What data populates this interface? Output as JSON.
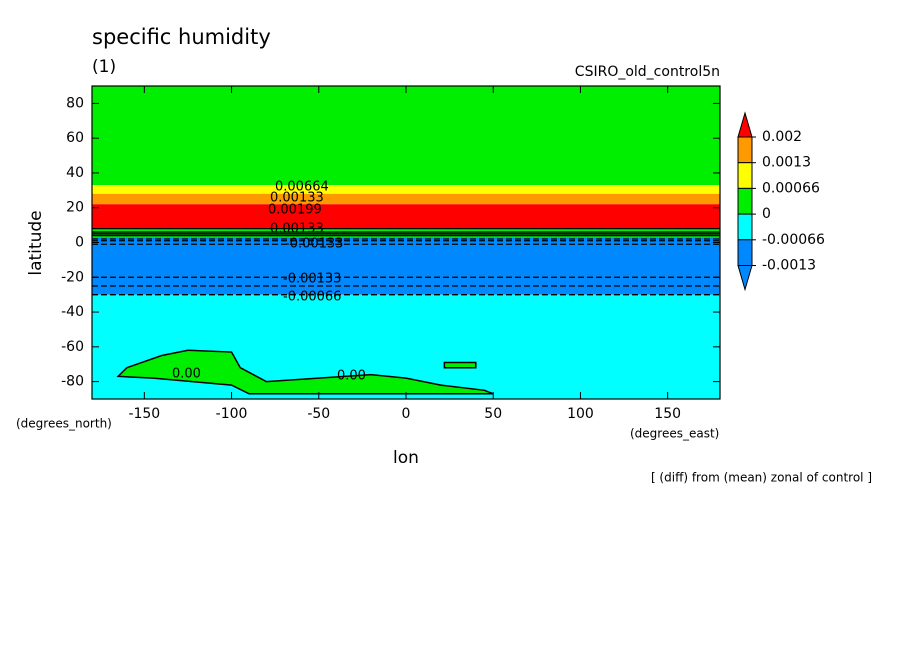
{
  "chart_data": {
    "type": "contour",
    "title": "specific humidity",
    "subtitle": "(1)",
    "source": "CSIRO_old_control5n",
    "y_label": "latitude",
    "x_label": "lon",
    "y_units": "(degrees_north)",
    "x_units": "(degrees_east)",
    "footnote": "[ (diff) from (mean) zonal of control ]",
    "xlim": [
      -180,
      180
    ],
    "ylim": [
      -90,
      90
    ],
    "xticks": [
      -150,
      -100,
      -50,
      0,
      50,
      100,
      150
    ],
    "yticks": [
      -80,
      -60,
      -40,
      -20,
      0,
      20,
      40,
      60,
      80
    ],
    "levels": [
      0.002,
      0.0013,
      0.00066,
      0,
      -0.00066,
      -0.0013
    ],
    "level_labels": [
      "0.002",
      "0.0013",
      "0.00066",
      "0",
      "-0.00066",
      "-0.0013"
    ],
    "level_colors": [
      "#ff0000",
      "#ff9900",
      "#ffff00",
      "#00ee00",
      "#00ffff",
      "#0088ff",
      "#0088ff"
    ],
    "bands": [
      {
        "from": 33,
        "to": 90,
        "color": "#00ee00"
      },
      {
        "from": 28,
        "to": 33,
        "color": "#ffff00"
      },
      {
        "from": 22,
        "to": 28,
        "color": "#ff9900"
      },
      {
        "from": 8,
        "to": 22,
        "color": "#ff0000"
      },
      {
        "from": 3,
        "to": 8,
        "color": "#00ee00"
      },
      {
        "from": -30,
        "to": 3,
        "color": "#0088ff"
      },
      {
        "from": -90,
        "to": -30,
        "color": "#00ffff"
      }
    ],
    "regions": [
      {
        "color": "#00ee00",
        "lon": [
          -140,
          -125,
          -100,
          -95,
          -80,
          -50,
          -20,
          0,
          20,
          45,
          50,
          -90,
          -100,
          -145,
          -165,
          -160
        ],
        "lat": [
          -65,
          -62,
          -63,
          -72,
          -80,
          -78,
          -76,
          -78,
          -82,
          -85,
          -87,
          -87,
          -82,
          -78,
          -77,
          -72
        ]
      },
      {
        "color": "#00ee00",
        "lon": [
          22,
          40,
          40,
          22
        ],
        "lat": [
          -69,
          -69,
          -72,
          -72
        ]
      }
    ],
    "contour_lats": [
      8,
      6,
      5,
      4,
      2,
      1,
      -1,
      -20,
      -25,
      -30
    ],
    "annotations": [
      "0.00664",
      "0.00133",
      "0.00199",
      "0.00133",
      "-0.00133",
      "-0.00133",
      "-0.00066",
      "0.00",
      "0.00"
    ]
  }
}
